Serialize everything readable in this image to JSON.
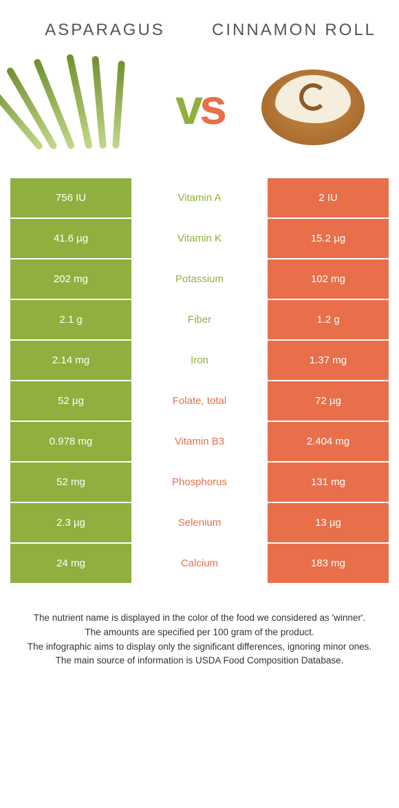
{
  "colors": {
    "left": "#8fb03e",
    "right": "#e86f4a",
    "bg": "#ffffff",
    "title": "#555555",
    "asparagus_stalk_light": "#c3d98a",
    "asparagus_stalk_dark": "#6f8f2e",
    "roll_body": "#c98a3f",
    "roll_icing": "#f5eedd",
    "roll_swirl": "#8a5a2a"
  },
  "header": {
    "left_title": "Asparagus",
    "right_title": "Cinnamon Roll",
    "vs_v": "v",
    "vs_s": "s"
  },
  "rows": [
    {
      "left": "756 IU",
      "label": "Vitamin A",
      "right": "2 IU",
      "winner": "left"
    },
    {
      "left": "41.6 µg",
      "label": "Vitamin K",
      "right": "15.2 µg",
      "winner": "left"
    },
    {
      "left": "202 mg",
      "label": "Potassium",
      "right": "102 mg",
      "winner": "left"
    },
    {
      "left": "2.1 g",
      "label": "Fiber",
      "right": "1.2 g",
      "winner": "left"
    },
    {
      "left": "2.14 mg",
      "label": "Iron",
      "right": "1.37 mg",
      "winner": "left"
    },
    {
      "left": "52 µg",
      "label": "Folate, total",
      "right": "72 µg",
      "winner": "right"
    },
    {
      "left": "0.978 mg",
      "label": "Vitamin B3",
      "right": "2.404 mg",
      "winner": "right"
    },
    {
      "left": "52 mg",
      "label": "Phosphorus",
      "right": "131 mg",
      "winner": "right"
    },
    {
      "left": "2.3 µg",
      "label": "Selenium",
      "right": "13 µg",
      "winner": "right"
    },
    {
      "left": "24 mg",
      "label": "Calcium",
      "right": "183 mg",
      "winner": "right"
    }
  ],
  "footnote": {
    "l1": "The nutrient name is displayed in the color of the food we considered as 'winner'.",
    "l2": "The amounts are specified per 100 gram of the product.",
    "l3": "The infographic aims to display only the significant differences, ignoring minor ones.",
    "l4": "The main source of information is USDA Food Composition Database."
  }
}
